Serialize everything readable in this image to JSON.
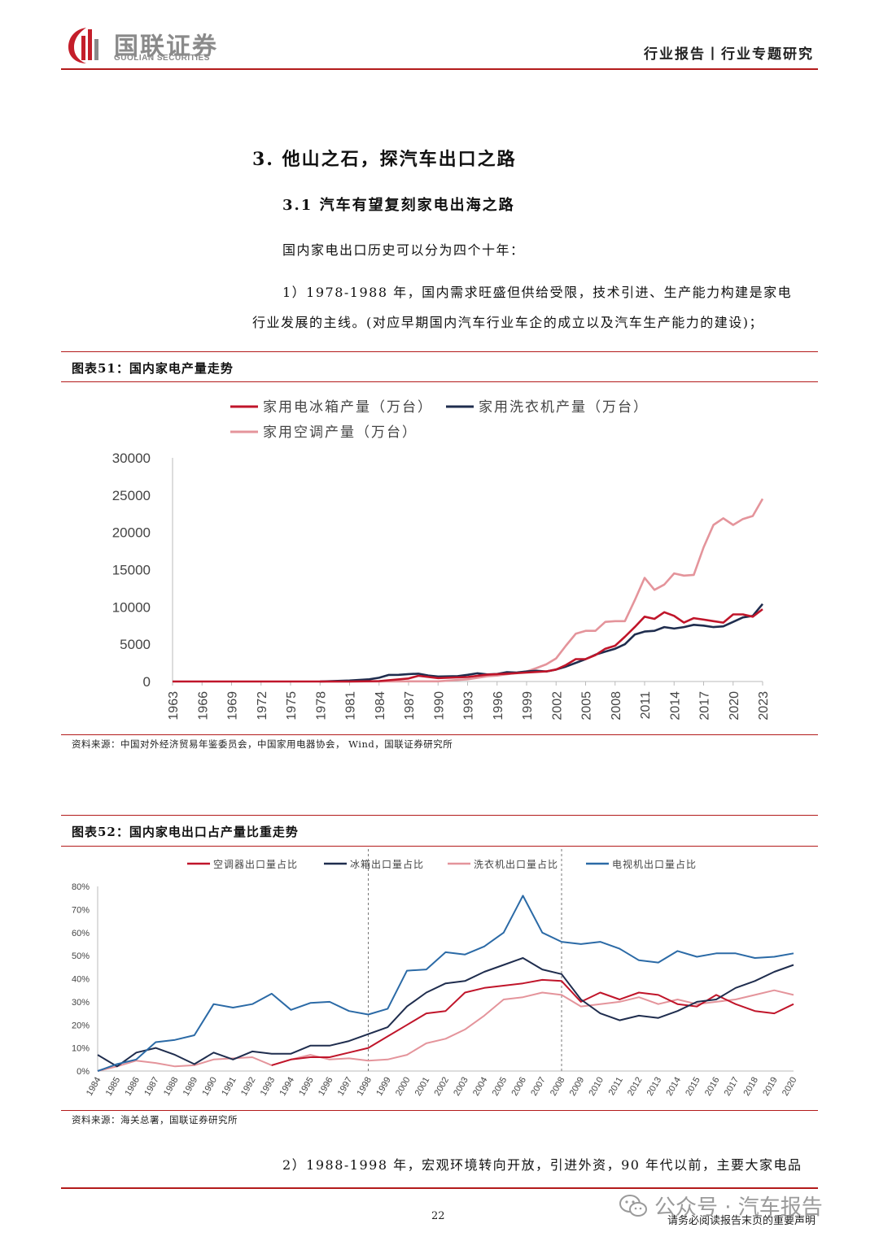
{
  "header": {
    "logo_cn": "国联证券",
    "logo_en": "GUOLIAN SECURITIES",
    "doc_type": "行业报告丨行业专题研究"
  },
  "section": {
    "heading": "3.  他山之石，探汽车出口之路",
    "sub_heading": "3.1 汽车有望复刻家电出海之路",
    "para_intro": "国内家电出口历史可以分为四个十年：",
    "para_1_line1": "1）1978-1988 年，国内需求旺盛但供给受限，技术引进、生产能力构建是家电",
    "para_1_line2": "行业发展的主线。(对应早期国内汽车行业车企的成立以及汽车生产能力的建设)；",
    "para_2": "2）1988-1998 年，宏观环境转向开放，引进外资，90 年代以前，主要大家电品"
  },
  "figure51": {
    "title": "图表51：国内家电产量走势",
    "source": "资料来源：中国对外经济贸易年鉴委员会，中国家用电器协会， Wind，国联证券研究所"
  },
  "figure52": {
    "title": "图表52：国内家电出口占产量比重走势",
    "source": "资料来源：海关总署，国联证券研究所"
  },
  "footer": {
    "page_number": "22",
    "disclaimer": "请务必阅读报告末页的重要声明",
    "watermark": "公众号 · 汽车报告"
  },
  "chart_data": [
    {
      "type": "line",
      "ylim": [
        0,
        30000
      ],
      "yticks": [
        0,
        5000,
        10000,
        15000,
        20000,
        25000,
        30000
      ],
      "ytick_labels": [
        "0",
        "5000",
        "10000",
        "15000",
        "20000",
        "25000",
        "30000"
      ],
      "xtick_labels": [
        "1963",
        "1966",
        "1969",
        "1972",
        "1975",
        "1978",
        "1981",
        "1984",
        "1987",
        "1990",
        "1993",
        "1996",
        "1999",
        "2002",
        "2005",
        "2008",
        "2011",
        "2014",
        "2017",
        "2020",
        "2023"
      ],
      "legend": "top-left",
      "colors": {
        "fridge": "#c0152a",
        "washer": "#1f2d4e",
        "ac": "#e4949b"
      },
      "series": [
        {
          "key": "fridge",
          "name": "家用电冰箱产量（万台）",
          "points": [
            [
              1963,
              0
            ],
            [
              1978,
              0
            ],
            [
              1981,
              5
            ],
            [
              1984,
              50
            ],
            [
              1987,
              400
            ],
            [
              1988,
              760
            ],
            [
              1990,
              460
            ],
            [
              1993,
              600
            ],
            [
              1995,
              920
            ],
            [
              1997,
              1050
            ],
            [
              1999,
              1200
            ],
            [
              2001,
              1350
            ],
            [
              2002,
              1600
            ],
            [
              2003,
              2200
            ],
            [
              2004,
              3000
            ],
            [
              2005,
              3000
            ],
            [
              2006,
              3550
            ],
            [
              2007,
              4400
            ],
            [
              2008,
              4800
            ],
            [
              2009,
              6000
            ],
            [
              2010,
              7300
            ],
            [
              2011,
              8700
            ],
            [
              2012,
              8400
            ],
            [
              2013,
              9300
            ],
            [
              2014,
              8800
            ],
            [
              2015,
              7900
            ],
            [
              2016,
              8500
            ],
            [
              2017,
              8300
            ],
            [
              2018,
              8100
            ],
            [
              2019,
              7900
            ],
            [
              2020,
              9000
            ],
            [
              2021,
              9000
            ],
            [
              2022,
              8700
            ],
            [
              2023,
              9700
            ]
          ]
        },
        {
          "key": "washer",
          "name": "家用洗衣机产量（万台）",
          "points": [
            [
              1978,
              0
            ],
            [
              1981,
              130
            ],
            [
              1983,
              300
            ],
            [
              1984,
              500
            ],
            [
              1985,
              880
            ],
            [
              1986,
              900
            ],
            [
              1987,
              990
            ],
            [
              1988,
              1050
            ],
            [
              1989,
              800
            ],
            [
              1990,
              660
            ],
            [
              1991,
              690
            ],
            [
              1992,
              720
            ],
            [
              1993,
              900
            ],
            [
              1994,
              1100
            ],
            [
              1995,
              950
            ],
            [
              1996,
              1000
            ],
            [
              1997,
              1250
            ],
            [
              1998,
              1200
            ],
            [
              1999,
              1340
            ],
            [
              2000,
              1440
            ],
            [
              2001,
              1340
            ],
            [
              2002,
              1600
            ],
            [
              2003,
              2000
            ],
            [
              2004,
              2500
            ],
            [
              2005,
              3000
            ],
            [
              2006,
              3600
            ],
            [
              2007,
              4000
            ],
            [
              2008,
              4400
            ],
            [
              2009,
              5000
            ],
            [
              2010,
              6300
            ],
            [
              2011,
              6700
            ],
            [
              2012,
              6800
            ],
            [
              2013,
              7300
            ],
            [
              2014,
              7100
            ],
            [
              2015,
              7300
            ],
            [
              2016,
              7600
            ],
            [
              2017,
              7500
            ],
            [
              2018,
              7300
            ],
            [
              2019,
              7400
            ],
            [
              2020,
              8000
            ],
            [
              2021,
              8600
            ],
            [
              2022,
              8800
            ],
            [
              2023,
              10400
            ]
          ]
        },
        {
          "key": "ac",
          "name": "家用空调产量（万台）",
          "points": [
            [
              1978,
              0
            ],
            [
              1981,
              0
            ],
            [
              1984,
              5
            ],
            [
              1987,
              20
            ],
            [
              1990,
              25
            ],
            [
              1993,
              300
            ],
            [
              1995,
              700
            ],
            [
              1996,
              800
            ],
            [
              1997,
              970
            ],
            [
              1998,
              1160
            ],
            [
              1999,
              1340
            ],
            [
              2000,
              1800
            ],
            [
              2001,
              2300
            ],
            [
              2002,
              3100
            ],
            [
              2003,
              4800
            ],
            [
              2004,
              6400
            ],
            [
              2005,
              6800
            ],
            [
              2006,
              6800
            ],
            [
              2007,
              8000
            ],
            [
              2008,
              8100
            ],
            [
              2009,
              8100
            ],
            [
              2010,
              10900
            ],
            [
              2011,
              13900
            ],
            [
              2012,
              12300
            ],
            [
              2013,
              13000
            ],
            [
              2014,
              14500
            ],
            [
              2015,
              14200
            ],
            [
              2016,
              14300
            ],
            [
              2017,
              18000
            ],
            [
              2018,
              21000
            ],
            [
              2019,
              21900
            ],
            [
              2020,
              21000
            ],
            [
              2021,
              21800
            ],
            [
              2022,
              22200
            ],
            [
              2023,
              24500
            ]
          ]
        }
      ]
    },
    {
      "type": "line",
      "ylim": [
        0,
        80
      ],
      "yticks": [
        0,
        10,
        20,
        30,
        40,
        50,
        60,
        70,
        80
      ],
      "ytick_labels": [
        "0%",
        "10%",
        "20%",
        "30%",
        "40%",
        "50%",
        "60%",
        "70%",
        "80%"
      ],
      "categories": [
        "1984",
        "1985",
        "1986",
        "1987",
        "1988",
        "1989",
        "1990",
        "1991",
        "1992",
        "1993",
        "1994",
        "1995",
        "1996",
        "1997",
        "1998",
        "1999",
        "2000",
        "2001",
        "2002",
        "2003",
        "2004",
        "2005",
        "2006",
        "2007",
        "2008",
        "2009",
        "2010",
        "2011",
        "2012",
        "2013",
        "2014",
        "2015",
        "2016",
        "2017",
        "2018",
        "2019",
        "2020"
      ],
      "vlines": [
        "1998",
        "2008"
      ],
      "legend": "top",
      "colors": {
        "ac": "#c0152a",
        "fridge": "#1f2d4e",
        "washer": "#e4949b",
        "tv": "#2b6aa6"
      },
      "series": [
        {
          "key": "ac",
          "name": "空调器出口量占比",
          "values": [
            null,
            null,
            null,
            null,
            null,
            null,
            null,
            null,
            null,
            2.5,
            5,
            6,
            6,
            8,
            10,
            15,
            20,
            25,
            26,
            34,
            36,
            37,
            38,
            39.5,
            39,
            30,
            34,
            31,
            34,
            33,
            29,
            28,
            33,
            29,
            26,
            25,
            29
          ]
        },
        {
          "key": "fridge",
          "name": "冰箱出口量占比",
          "values": [
            7,
            2,
            8,
            10,
            7,
            3,
            8,
            5,
            8.5,
            7.5,
            7.5,
            11,
            11,
            13,
            16,
            19,
            28,
            34,
            38,
            39,
            43,
            46,
            49,
            44,
            42,
            31,
            25,
            22,
            24,
            23,
            26,
            30,
            31,
            36,
            39,
            43,
            46
          ]
        },
        {
          "key": "washer",
          "name": "洗衣机出口量占比",
          "values": [
            0,
            2,
            4.5,
            3.5,
            2,
            2.5,
            5,
            5.5,
            6,
            2.5,
            5,
            7,
            5,
            5.5,
            4.5,
            5,
            7,
            12,
            14,
            18,
            24,
            31,
            32,
            34,
            33,
            28,
            29,
            30,
            32,
            29,
            31,
            29,
            30,
            31,
            33,
            35,
            33
          ]
        },
        {
          "key": "tv",
          "name": "电视机出口量占比",
          "values": [
            0,
            3,
            5,
            12.5,
            13.5,
            15.5,
            29,
            27.5,
            29,
            33.5,
            26.5,
            29.5,
            30,
            26,
            24.5,
            27,
            43.5,
            44,
            51.5,
            50.5,
            54,
            60,
            76,
            60,
            56,
            55,
            56,
            53,
            48,
            47,
            52,
            49.5,
            51,
            51,
            49,
            49.5,
            51
          ]
        }
      ]
    }
  ]
}
